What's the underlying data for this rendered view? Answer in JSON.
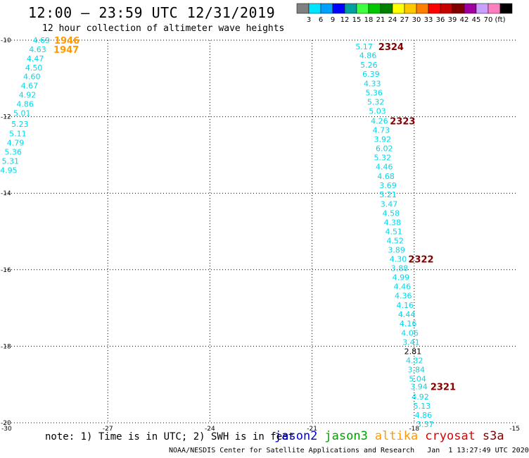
{
  "header": {
    "title": "12:00 – 23:59 UTC 12/31/2019",
    "subtitle": "12 hour collection of altimeter wave heights"
  },
  "colorbar": {
    "colors": [
      "#808080",
      "#00e5ff",
      "#00a0ff",
      "#0000ff",
      "#00a0a0",
      "#40ff40",
      "#00c800",
      "#008000",
      "#ffff00",
      "#ffc800",
      "#ff8000",
      "#ff0000",
      "#c80000",
      "#800000",
      "#a000a0",
      "#c8a0ff",
      "#ff80c0",
      "#000000"
    ],
    "labels": [
      "3",
      "6",
      "9",
      "12",
      "15",
      "18",
      "21",
      "24",
      "27",
      "30",
      "33",
      "36",
      "39",
      "42",
      "45",
      "70",
      "(ft)"
    ]
  },
  "map": {
    "lon_ticks": [
      -30,
      -27,
      -24,
      -21,
      -18,
      -15
    ],
    "lon_tick_labels": [
      "-30",
      "-27",
      "-24",
      "-21",
      "-18",
      "-15"
    ],
    "lat_ticks": [
      -10,
      -12,
      -14,
      -16,
      -18,
      -20
    ],
    "lat_tick_labels": [
      "-10",
      "-12",
      "-14",
      "-16",
      "-18",
      "-20"
    ],
    "lon_range": [
      -30,
      -15
    ],
    "lat_range": [
      -20,
      -10
    ],
    "grid": "dotted",
    "colors": {
      "cyan": "#00d8e8",
      "dark": "#000000"
    },
    "tracks": [
      {
        "values": [
          {
            "text": "4.69",
            "lat": -10.0,
            "lon": -28.95
          },
          {
            "text": "4.63",
            "lat": -10.24,
            "lon": -29.06
          },
          {
            "text": "4.47",
            "lat": -10.48,
            "lon": -29.13
          },
          {
            "text": "4.50",
            "lat": -10.72,
            "lon": -29.17
          },
          {
            "text": "4.60",
            "lat": -10.95,
            "lon": -29.23
          },
          {
            "text": "4.67",
            "lat": -11.19,
            "lon": -29.3
          },
          {
            "text": "4.92",
            "lat": -11.43,
            "lon": -29.36
          },
          {
            "text": "4.86",
            "lat": -11.67,
            "lon": -29.43
          },
          {
            "text": "5.01",
            "lat": -11.91,
            "lon": -29.52
          },
          {
            "text": "5.23",
            "lat": -12.19,
            "lon": -29.58
          },
          {
            "text": "5.11",
            "lat": -12.44,
            "lon": -29.64
          },
          {
            "text": "4.79",
            "lat": -12.68,
            "lon": -29.71
          },
          {
            "text": "5.36",
            "lat": -12.92,
            "lon": -29.78
          },
          {
            "text": "5.31",
            "lat": -13.16,
            "lon": -29.86
          },
          {
            "text": "4.95",
            "lat": -13.4,
            "lon": -29.91
          }
        ],
        "passes": [
          {
            "text": "1946",
            "lat": -10.0,
            "lon": -28.2,
            "color": "#ff9900"
          },
          {
            "text": "1947",
            "lat": -10.24,
            "lon": -28.22,
            "color": "#ff9900"
          }
        ]
      },
      {
        "values": [
          {
            "text": "5.17",
            "lat": -10.17,
            "lon": -19.47
          },
          {
            "text": "4.86",
            "lat": -10.4,
            "lon": -19.36
          },
          {
            "text": "5.26",
            "lat": -10.64,
            "lon": -19.33
          },
          {
            "text": "6.39",
            "lat": -10.88,
            "lon": -19.27
          },
          {
            "text": "4.33",
            "lat": -11.13,
            "lon": -19.23
          },
          {
            "text": "5.36",
            "lat": -11.37,
            "lon": -19.18
          },
          {
            "text": "5.32",
            "lat": -11.61,
            "lon": -19.13
          },
          {
            "text": "5.03",
            "lat": -11.85,
            "lon": -19.08
          },
          {
            "text": "4.26",
            "lat": -12.11,
            "lon": -19.02
          },
          {
            "text": "4.73",
            "lat": -12.35,
            "lon": -18.97
          },
          {
            "text": "3.92",
            "lat": -12.59,
            "lon": -18.93
          },
          {
            "text": "6.02",
            "lat": -12.83,
            "lon": -18.88
          },
          {
            "text": "5.32",
            "lat": -13.07,
            "lon": -18.93
          },
          {
            "text": "4.46",
            "lat": -13.31,
            "lon": -18.88
          },
          {
            "text": "4.68",
            "lat": -13.55,
            "lon": -18.83
          },
          {
            "text": "3.69",
            "lat": -13.79,
            "lon": -18.77
          },
          {
            "text": "5.21",
            "lat": -14.03,
            "lon": -18.77
          },
          {
            "text": "3.47",
            "lat": -14.28,
            "lon": -18.74
          },
          {
            "text": "4.58",
            "lat": -14.52,
            "lon": -18.68
          },
          {
            "text": "4.38",
            "lat": -14.76,
            "lon": -18.64
          },
          {
            "text": "4.51",
            "lat": -15.0,
            "lon": -18.6
          },
          {
            "text": "4.52",
            "lat": -15.24,
            "lon": -18.56
          },
          {
            "text": "3.89",
            "lat": -15.48,
            "lon": -18.52
          },
          {
            "text": "4.30",
            "lat": -15.72,
            "lon": -18.47
          },
          {
            "text": "3.88",
            "lat": -15.96,
            "lon": -18.43
          },
          {
            "text": "4.99",
            "lat": -16.2,
            "lon": -18.39
          },
          {
            "text": "4.46",
            "lat": -16.44,
            "lon": -18.35
          },
          {
            "text": "4.36",
            "lat": -16.68,
            "lon": -18.32
          },
          {
            "text": "4.16",
            "lat": -16.92,
            "lon": -18.27
          },
          {
            "text": "4.44",
            "lat": -17.16,
            "lon": -18.22
          },
          {
            "text": "4.16",
            "lat": -17.4,
            "lon": -18.18
          },
          {
            "text": "4.06",
            "lat": -17.65,
            "lon": -18.13
          },
          {
            "text": "3.41",
            "lat": -17.89,
            "lon": -18.09
          },
          {
            "text": "4.32",
            "lat": -18.37,
            "lon": -17.99
          },
          {
            "text": "3.84",
            "lat": -18.61,
            "lon": -17.94
          },
          {
            "text": "5.04",
            "lat": -18.85,
            "lon": -17.9
          },
          {
            "text": "3.94",
            "lat": -19.05,
            "lon": -17.86
          },
          {
            "text": "4.92",
            "lat": -19.32,
            "lon": -17.82
          },
          {
            "text": "5.13",
            "lat": -19.56,
            "lon": -17.77
          },
          {
            "text": "4.86",
            "lat": -19.8,
            "lon": -17.73
          },
          {
            "text": "3.37",
            "lat": -20.04,
            "lon": -17.68
          }
        ],
        "extra_values": [
          {
            "text": "2.81",
            "lat": -18.13,
            "lon": -18.04,
            "color": "#000000"
          }
        ],
        "passes": [
          {
            "text": "2324",
            "lat": -10.17,
            "lon": -18.68,
            "color": "#800000"
          },
          {
            "text": "2323",
            "lat": -12.11,
            "lon": -18.34,
            "color": "#800000"
          },
          {
            "text": "2322",
            "lat": -15.72,
            "lon": -17.8,
            "color": "#800000"
          },
          {
            "text": "2321",
            "lat": -19.05,
            "lon": -17.15,
            "color": "#800000"
          }
        ]
      }
    ]
  },
  "note": "note: 1) Time is in UTC; 2) SWH is in feet",
  "legend": [
    {
      "name": "jason2",
      "color": "#0000cc"
    },
    {
      "name": "jason3",
      "color": "#00a000"
    },
    {
      "name": "altika",
      "color": "#ff9900"
    },
    {
      "name": "cryosat",
      "color": "#dd0000"
    },
    {
      "name": "s3a",
      "color": "#800000"
    }
  ],
  "footer": "NOAA/NESDIS Center for Satellite Applications and Research   Jan  1 13:27:49 UTC 2020"
}
